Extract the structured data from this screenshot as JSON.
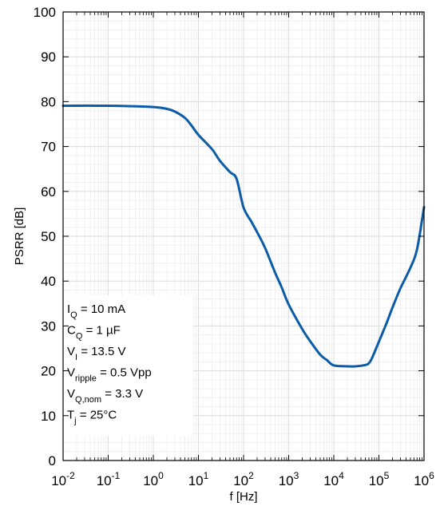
{
  "chart_data": {
    "type": "line",
    "xlabel": "f [Hz]",
    "ylabel": "PSRR [dB]",
    "xscale": "log",
    "xlim": [
      0.01,
      1000000
    ],
    "ylim": [
      0,
      100
    ],
    "grid": "major and minor",
    "x_ticks": [
      {
        "base": "10",
        "exp": "-2"
      },
      {
        "base": "10",
        "exp": "-1"
      },
      {
        "base": "10",
        "exp": "0"
      },
      {
        "base": "10",
        "exp": "1"
      },
      {
        "base": "10",
        "exp": "2"
      },
      {
        "base": "10",
        "exp": "3"
      },
      {
        "base": "10",
        "exp": "4"
      },
      {
        "base": "10",
        "exp": "5"
      },
      {
        "base": "10",
        "exp": "6"
      }
    ],
    "y_ticks": [
      "0",
      "10",
      "20",
      "30",
      "40",
      "50",
      "60",
      "70",
      "80",
      "90",
      "100"
    ],
    "series_color": "#0b5ca8",
    "series": [
      {
        "x": [
          0.01,
          0.1,
          0.3,
          1,
          2,
          3,
          5,
          7,
          10,
          20,
          30,
          50,
          70,
          100,
          150,
          200,
          300,
          500,
          700,
          1000,
          2000,
          3000,
          5000,
          7000,
          10000,
          20000,
          30000,
          50000,
          60000,
          70000,
          100000,
          150000,
          200000,
          300000,
          500000,
          700000,
          1000000
        ],
        "y": [
          79.1,
          79.1,
          79.0,
          78.8,
          78.4,
          77.8,
          76.4,
          74.7,
          72.6,
          69.4,
          66.8,
          64.3,
          62.8,
          56.4,
          53.2,
          50.9,
          47.4,
          41.9,
          38.6,
          34.8,
          29.3,
          26.6,
          23.6,
          22.4,
          21.2,
          21.0,
          21.0,
          21.3,
          21.7,
          22.8,
          26.5,
          30.8,
          34.1,
          38.4,
          43.0,
          47.1,
          56.5
        ]
      }
    ],
    "legend_lines": [
      {
        "main": "I",
        "sub": "Q",
        "rest": " = 10 mA"
      },
      {
        "main": "C",
        "sub": "Q",
        "rest": " = 1 µF"
      },
      {
        "main": "V",
        "sub": "I",
        "rest": " = 13.5 V"
      },
      {
        "main": "V",
        "sub": "ripple",
        "rest": " = 0.5 Vpp"
      },
      {
        "main": "V",
        "sub": "Q,nom",
        "rest": " = 3.3 V"
      },
      {
        "main": "T",
        "sub": "j",
        "rest": " = 25°C"
      }
    ]
  }
}
